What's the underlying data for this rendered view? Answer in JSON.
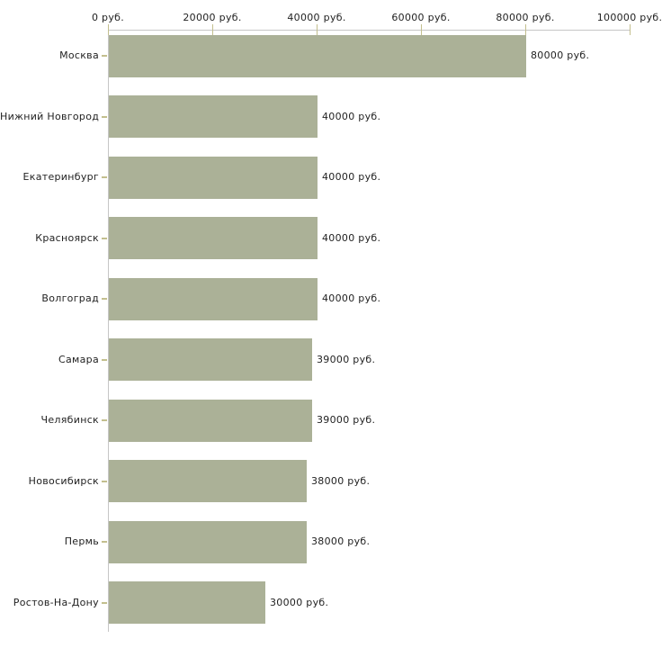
{
  "chart_data": {
    "type": "bar",
    "orientation": "horizontal",
    "unit": "руб.",
    "xlim": [
      0,
      100000
    ],
    "grid": false,
    "x_ticks": [
      {
        "value": 0,
        "label": "0 руб."
      },
      {
        "value": 20000,
        "label": "20000 руб."
      },
      {
        "value": 40000,
        "label": "40000 руб."
      },
      {
        "value": 60000,
        "label": "60000 руб."
      },
      {
        "value": 80000,
        "label": "80000 руб."
      },
      {
        "value": 100000,
        "label": "100000 руб."
      }
    ],
    "categories": [
      "Москва",
      "Нижний Новгород",
      "Екатеринбург",
      "Красноярск",
      "Волгоград",
      "Самара",
      "Челябинск",
      "Новосибирск",
      "Пермь",
      "Ростов-На-Дону"
    ],
    "values": [
      80000,
      40000,
      40000,
      40000,
      40000,
      39000,
      39000,
      38000,
      38000,
      30000
    ],
    "bar_labels": [
      "80000 руб.",
      "40000 руб.",
      "40000 руб.",
      "40000 руб.",
      "40000 руб.",
      "39000 руб.",
      "39000 руб.",
      "38000 руб.",
      "38000 руб.",
      "30000 руб."
    ],
    "colors": {
      "bar": "#abb197",
      "axis_line": "#c6c6c6",
      "tick": "#c3bf8e",
      "text": "#222222",
      "background": "#ffffff"
    }
  }
}
